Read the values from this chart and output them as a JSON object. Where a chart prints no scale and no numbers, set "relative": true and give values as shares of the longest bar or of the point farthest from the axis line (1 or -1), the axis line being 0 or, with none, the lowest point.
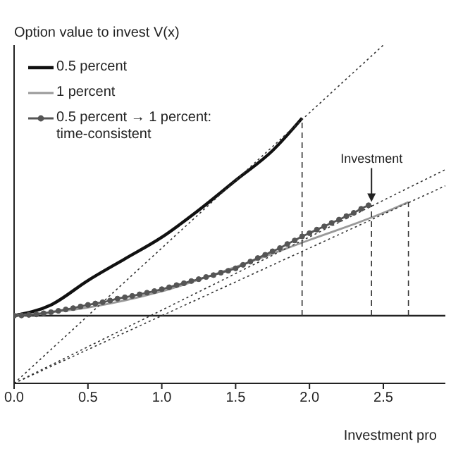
{
  "chart_data": {
    "type": "line",
    "relative": true,
    "ylabel": "Option value to invest V(x)",
    "xlabel": "Investment pro",
    "xlim": [
      0,
      2.92
    ],
    "xticks": [
      {
        "value": 0,
        "label": "0.0"
      },
      {
        "value": 0.5,
        "label": "0.5"
      },
      {
        "value": 1,
        "label": "1.0"
      },
      {
        "value": 1.5,
        "label": "1.5"
      },
      {
        "value": 2,
        "label": "2.0"
      },
      {
        "value": 2.5,
        "label": "2.5"
      }
    ],
    "legend": "top left",
    "tick_labels": "x",
    "ref_lines": [
      {
        "axis": "y",
        "value": 0,
        "color": "#222222",
        "line_style": "solid"
      }
    ],
    "annotations": [
      {
        "text": "Investment",
        "x": 2.42,
        "y": 0.41
      }
    ],
    "series": [
      {
        "name": "0.5 percent",
        "color": "#111111",
        "marker": "none",
        "line_style": "solid",
        "x": [
          0,
          0.25,
          0.5,
          0.75,
          1,
          1.25,
          1.5,
          1.75,
          1.95
        ],
        "values": [
          0,
          0.04,
          0.13,
          0.21,
          0.29,
          0.39,
          0.5,
          0.61,
          0.73
        ]
      },
      {
        "name": "1 percent",
        "color": "#999999",
        "marker": "none",
        "line_style": "solid",
        "x": [
          0,
          0.5,
          1,
          1.5,
          2,
          2.5,
          2.67
        ],
        "values": [
          0,
          0.03,
          0.09,
          0.18,
          0.28,
          0.38,
          0.42
        ]
      },
      {
        "name": "0.5 percent → 1 percent: time-consistent",
        "color": "#555555",
        "marker": "circle",
        "line_style": "solid",
        "x": [
          0,
          0.05,
          0.1,
          0.15,
          0.2,
          0.25,
          0.3,
          0.35,
          0.4,
          0.45,
          0.5,
          0.55,
          0.6,
          0.65,
          0.7,
          0.75,
          0.8,
          0.85,
          0.9,
          0.95,
          1,
          1.05,
          1.1,
          1.15,
          1.2,
          1.25,
          1.3,
          1.35,
          1.4,
          1.45,
          1.5,
          1.55,
          1.6,
          1.65,
          1.7,
          1.75,
          1.8,
          1.85,
          1.9,
          1.95,
          2,
          2.05,
          2.1,
          2.15,
          2.2,
          2.25,
          2.3,
          2.35,
          2.4
        ],
        "values": [
          0,
          0.001,
          0.003,
          0.005,
          0.009,
          0.013,
          0.018,
          0.023,
          0.028,
          0.034,
          0.04,
          0.045,
          0.05,
          0.056,
          0.063,
          0.068,
          0.073,
          0.079,
          0.085,
          0.091,
          0.098,
          0.105,
          0.113,
          0.12,
          0.128,
          0.135,
          0.143,
          0.15,
          0.159,
          0.166,
          0.175,
          0.188,
          0.2,
          0.213,
          0.225,
          0.238,
          0.25,
          0.265,
          0.278,
          0.293,
          0.305,
          0.318,
          0.33,
          0.343,
          0.355,
          0.368,
          0.38,
          0.395,
          0.408
        ]
      },
      {
        "color": "#333333",
        "marker": "none",
        "line_style": "dotted",
        "x": [
          0,
          2.5
        ],
        "values": [
          -0.25,
          1
        ]
      },
      {
        "color": "#333333",
        "marker": "none",
        "line_style": "dotted",
        "x": [
          0,
          2.92
        ],
        "values": [
          -0.25,
          0.54
        ]
      },
      {
        "color": "#333333",
        "marker": "none",
        "line_style": "dotted",
        "x": [
          0,
          2.92
        ],
        "values": [
          -0.25,
          0.48
        ]
      },
      {
        "color": "#333333",
        "marker": "none",
        "line_style": "dashed",
        "x": [
          1.95,
          1.95
        ],
        "values": [
          0,
          0.73
        ]
      },
      {
        "color": "#333333",
        "marker": "none",
        "line_style": "dashed",
        "x": [
          2.42,
          2.42
        ],
        "values": [
          0,
          0.408
        ]
      },
      {
        "color": "#333333",
        "marker": "none",
        "line_style": "dashed",
        "x": [
          2.67,
          2.67
        ],
        "values": [
          0,
          0.42
        ]
      }
    ]
  }
}
